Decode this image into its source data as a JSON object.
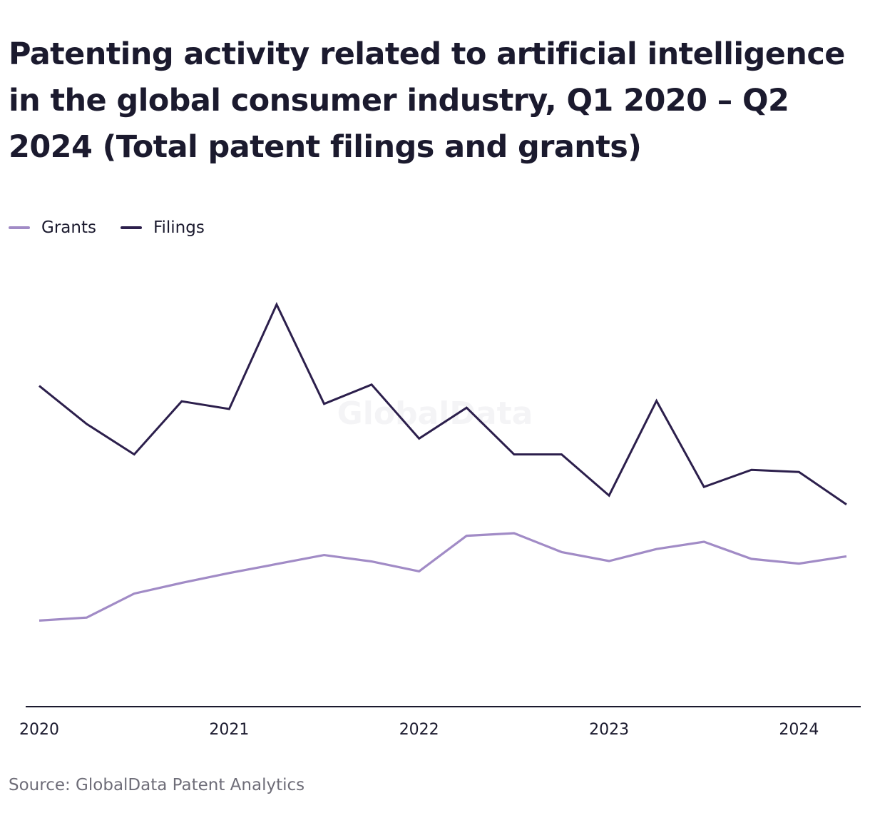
{
  "chart_data": {
    "type": "line",
    "title": "Patenting activity related to artificial intelligence in the global consumer industry, Q1 2020 – Q2 2024 (Total patent filings and grants)",
    "source": "Source: GlobalData Patent Analytics",
    "watermark": "GlobalData",
    "x": [
      "Q1 2020",
      "Q2 2020",
      "Q3 2020",
      "Q4 2020",
      "Q1 2021",
      "Q2 2021",
      "Q3 2021",
      "Q4 2021",
      "Q1 2022",
      "Q2 2022",
      "Q3 2022",
      "Q4 2022",
      "Q1 2023",
      "Q2 2023",
      "Q3 2023",
      "Q4 2023",
      "Q1 2024",
      "Q2 2024"
    ],
    "x_tick_labels": [
      "2020",
      "2021",
      "2022",
      "2023",
      "2024"
    ],
    "x_tick_positions": [
      0,
      4,
      8,
      12,
      16
    ],
    "ylim": [
      0,
      1000
    ],
    "grid": false,
    "legend_position": "top-left",
    "series": [
      {
        "name": "Grants",
        "color": "#a18bc6",
        "values": [
          201,
          208,
          264,
          289,
          312,
          333,
          354,
          339,
          316,
          399,
          405,
          361,
          340,
          368,
          385,
          345,
          334,
          351
        ]
      },
      {
        "name": "Filings",
        "color": "#2c1f4c",
        "values": [
          749,
          660,
          589,
          713,
          695,
          939,
          707,
          752,
          626,
          698,
          589,
          589,
          493,
          714,
          513,
          553,
          548,
          472
        ]
      }
    ]
  }
}
